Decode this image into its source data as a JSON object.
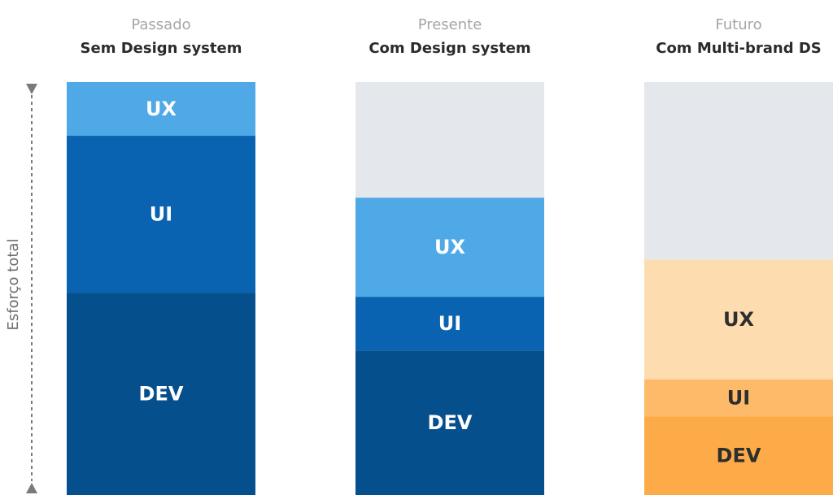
{
  "chart_data": {
    "type": "bar",
    "stacked": true,
    "ylabel": "Esforço total",
    "columns": [
      {
        "era": "Passado",
        "title": "Sem Design system",
        "segments": [
          {
            "name": "UX",
            "value": 0.13,
            "color": "#4FA9E6",
            "text_color": "#ffffff"
          },
          {
            "name": "UI",
            "value": 0.38,
            "color": "#0A63B1",
            "text_color": "#ffffff"
          },
          {
            "name": "DEV",
            "value": 0.49,
            "color": "#064F8D",
            "text_color": "#ffffff"
          }
        ],
        "remainder": 0,
        "remainder_color": "#E4E7EB"
      },
      {
        "era": "Presente",
        "title": "Com Design system",
        "segments": [
          {
            "name": "UX",
            "value": 0.24,
            "color": "#4FA9E6",
            "text_color": "#ffffff"
          },
          {
            "name": "UI",
            "value": 0.13,
            "color": "#0A63B1",
            "text_color": "#ffffff"
          },
          {
            "name": "DEV",
            "value": 0.35,
            "color": "#064F8D",
            "text_color": "#ffffff"
          }
        ],
        "remainder": 0.28,
        "remainder_color": "#E4E7EB"
      },
      {
        "era": "Futuro",
        "title": "Com Multi-brand DS",
        "segments": [
          {
            "name": "UX",
            "value": 0.29,
            "color": "#FDDCB0",
            "text_color": "#2e2e2e"
          },
          {
            "name": "UI",
            "value": 0.09,
            "color": "#FDBB6A",
            "text_color": "#2e2e2e"
          },
          {
            "name": "DEV",
            "value": 0.19,
            "color": "#FDAB48",
            "text_color": "#2e2e2e"
          }
        ],
        "remainder": 0.43,
        "remainder_color": "#E4E7EB"
      }
    ]
  }
}
